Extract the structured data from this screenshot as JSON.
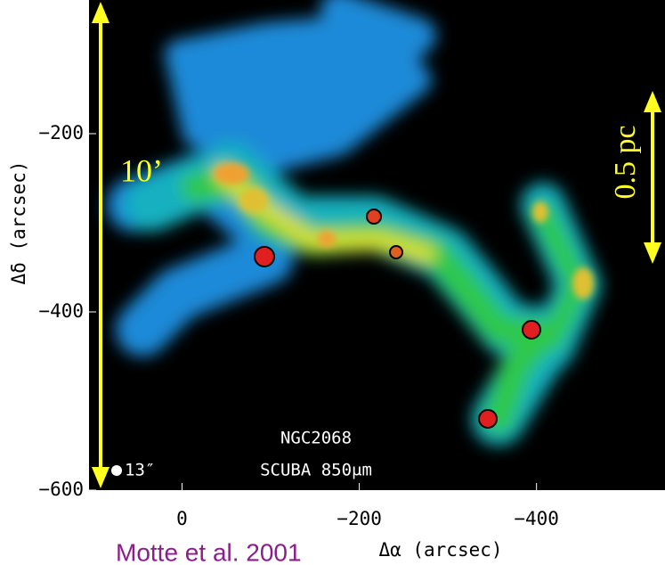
{
  "chart_data": {
    "type": "image",
    "xlabel": "Δα (arcsec)",
    "ylabel": "Δδ (arcsec)",
    "xlim": [
      105,
      -545
    ],
    "ylim": [
      -600,
      -50
    ],
    "xticks": [
      0,
      {
        "value": -200,
        "label": "−200"
      },
      {
        "value": -400,
        "label": "−400"
      }
    ],
    "yticks": [
      {
        "value": -200,
        "label": "−200"
      },
      {
        "value": -400,
        "label": "−400"
      },
      {
        "value": -600,
        "label": "−600"
      }
    ],
    "annotations": {
      "scale_angle": "10’",
      "scale_length": "0.5 pc",
      "source": "NGC2068",
      "beam": "13″",
      "instrument": "SCUBA 850μm",
      "credit": "Motte et al. 2001"
    }
  }
}
